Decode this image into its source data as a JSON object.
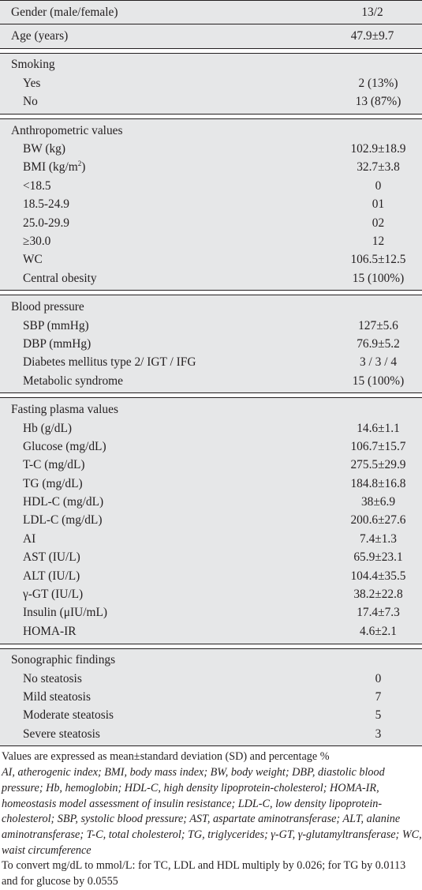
{
  "table": {
    "groups": [
      {
        "rows": [
          {
            "label": "Gender (male/female)",
            "value": "13/2"
          }
        ]
      },
      {
        "rows": [
          {
            "label": "Age (years)",
            "value": "47.9±9.7"
          }
        ]
      },
      {
        "header": "Smoking",
        "rows": [
          {
            "label": "Yes",
            "value": "2 (13%)"
          },
          {
            "label": "No",
            "value": "13 (87%)"
          }
        ]
      },
      {
        "header": "Anthropometric values",
        "rows": [
          {
            "label": "BW (kg)",
            "value": "102.9±18.9"
          },
          {
            "label": "BMI (kg/m",
            "label_sup": "2",
            "label_after": ")",
            "value": "32.7±3.8"
          },
          {
            "label": "<18.5",
            "value": "0"
          },
          {
            "label": "18.5-24.9",
            "value": "01"
          },
          {
            "label": "25.0-29.9",
            "value": "02"
          },
          {
            "label": "≥30.0",
            "value": "12"
          },
          {
            "label": "WC",
            "value": "106.5±12.5"
          },
          {
            "label": "Central obesity",
            "value": "15 (100%)"
          }
        ]
      },
      {
        "header": "Blood pressure",
        "rows": [
          {
            "label": "SBP (mmHg)",
            "value": "127±5.6"
          },
          {
            "label": "DBP (mmHg)",
            "value": "76.9±5.2"
          },
          {
            "label": "Diabetes mellitus type 2/ IGT / IFG",
            "value": "3 / 3 / 4"
          },
          {
            "label": "Metabolic syndrome",
            "value": "15 (100%)"
          }
        ]
      },
      {
        "header": "Fasting plasma values",
        "rows": [
          {
            "label": "Hb (g/dL)",
            "value": "14.6±1.1"
          },
          {
            "label": "Glucose (mg/dL)",
            "value": "106.7±15.7"
          },
          {
            "label": "T-C (mg/dL)",
            "value": "275.5±29.9"
          },
          {
            "label": "TG (mg/dL)",
            "value": "184.8±16.8"
          },
          {
            "label": "HDL-C (mg/dL)",
            "value": "38±6.9"
          },
          {
            "label": "LDL-C (mg/dL)",
            "value": "200.6±27.6"
          },
          {
            "label": "AI",
            "value": "7.4±1.3"
          },
          {
            "label": "AST (IU/L)",
            "value": "65.9±23.1"
          },
          {
            "label": "ALT (IU/L)",
            "value": "104.4±35.5"
          },
          {
            "label": "γ-GT (IU/L)",
            "value": "38.2±22.8"
          },
          {
            "label": "Insulin (μIU/mL)",
            "value": "17.4±7.3"
          },
          {
            "label": "HOMA-IR",
            "value": "4.6±2.1"
          }
        ]
      },
      {
        "header": "Sonographic findings",
        "rows": [
          {
            "label": "No steatosis",
            "value": "0"
          },
          {
            "label": "Mild steatosis",
            "value": "7"
          },
          {
            "label": "Moderate steatosis",
            "value": "5"
          },
          {
            "label": "Severe steatosis",
            "value": "3"
          }
        ]
      }
    ]
  },
  "footer": {
    "values_note": "Values are expressed as mean±standard deviation (SD) and percentage %",
    "abbreviations": "AI, atherogenic index; BMI, body mass index; BW, body weight; DBP, diastolic blood pressure; Hb, hemoglobin; HDL-C, high density lipoprotein-cholesterol; HOMA-IR, homeostasis model assessment of insulin resistance; LDL-C, low density lipoprotein-cholesterol; SBP, systolic blood pressure; AST, aspartate aminotransferase; ALT, alanine aminotransferase; T-C, total cholesterol; TG, triglycerides; γ-GT, γ-glutamyltransferase; WC, waist circumference",
    "conversion_note": "To convert mg/dL to mmol/L: for TC, LDL and HDL multiply by 0.026; for TG by 0.0113 and for glucose by 0.0555"
  }
}
